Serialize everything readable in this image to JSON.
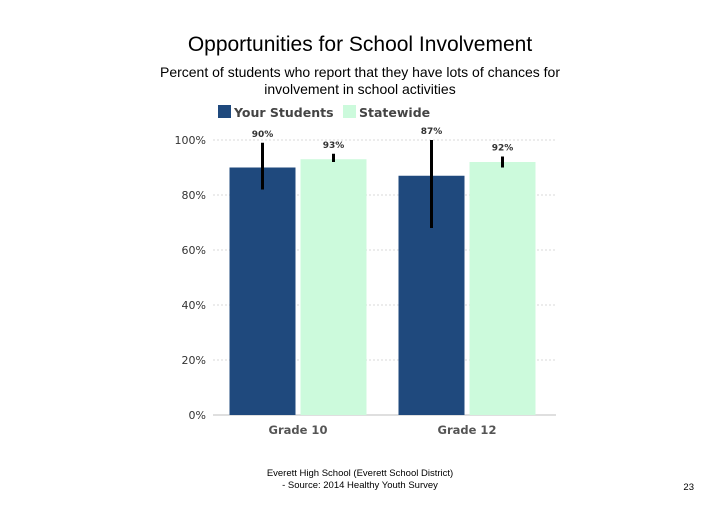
{
  "slide": {
    "title": "Opportunities for School Involvement",
    "subtitle": "Percent of students who report that they have lots of chances for involvement in school activities",
    "source_line1": "Everett High School (Everett School District)",
    "source_line2": "- Source: 2014 Healthy Youth Survey",
    "page_number": "23"
  },
  "chart_data": {
    "type": "bar",
    "categories": [
      "Grade 10",
      "Grade 12"
    ],
    "series": [
      {
        "name": "Your Students",
        "values": [
          90,
          87
        ],
        "labels": [
          "90%",
          "87%"
        ],
        "error": [
          [
            82,
            99
          ],
          [
            68,
            100
          ]
        ],
        "color": "#1f497d"
      },
      {
        "name": "Statewide",
        "values": [
          93,
          92
        ],
        "labels": [
          "93%",
          "92%"
        ],
        "error": [
          [
            92,
            95
          ],
          [
            90,
            94
          ]
        ],
        "color": "#ccfadc"
      }
    ],
    "ylim": [
      0,
      100
    ],
    "yticks": [
      "0%",
      "20%",
      "40%",
      "60%",
      "80%",
      "100%"
    ],
    "ytick_values": [
      0,
      20,
      40,
      60,
      80,
      100
    ],
    "grid": true,
    "legend": "top"
  }
}
